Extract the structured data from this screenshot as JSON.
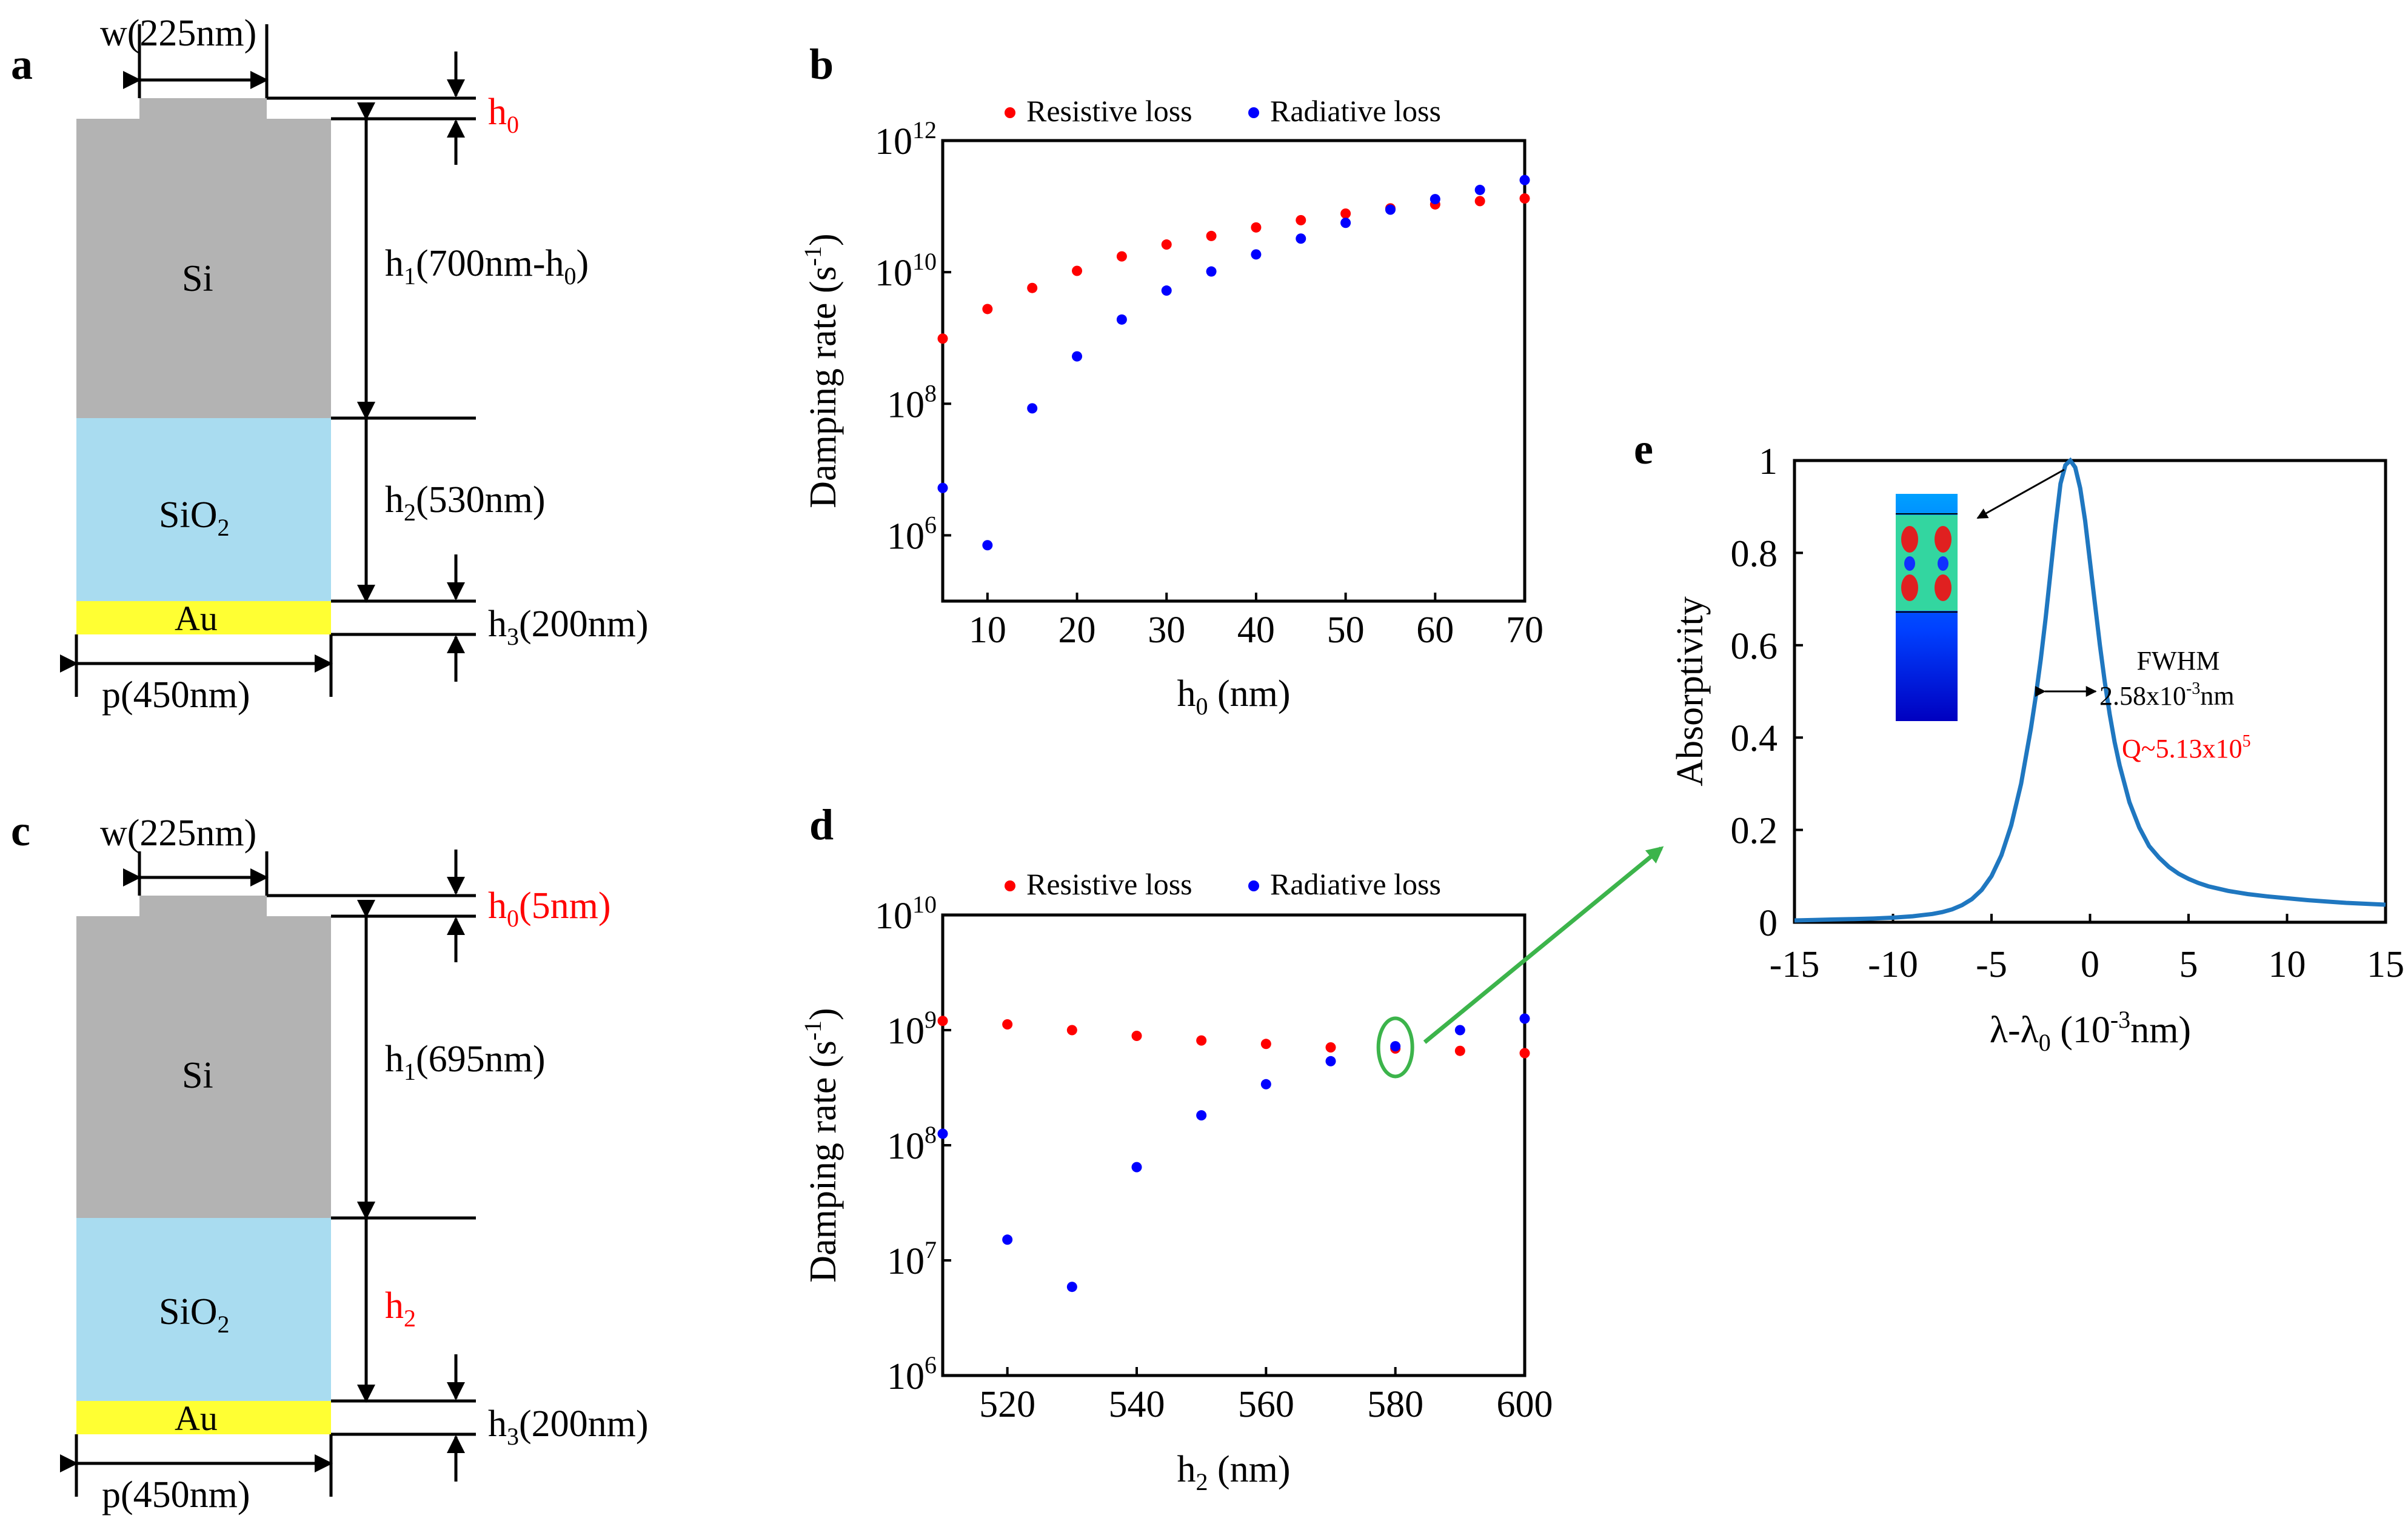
{
  "colors": {
    "si": "#b3b3b3",
    "sio2": "#a9dcf0",
    "au": "#ffff33",
    "resistive": "#ff0000",
    "radiative": "#0000ff",
    "curve": "#1f77c0",
    "arrow": "#3cb44b",
    "highlight": "#ff0000"
  },
  "panel_a": {
    "label": "a",
    "w_label": "w(225nm)",
    "h0_label": "h",
    "h0_sub": "0",
    "si_label": "Si",
    "h1_label": "h",
    "h1_sub": "1",
    "h1_text_a": "(700nm-h",
    "h1_text_sub": "0",
    "h1_text_b": ")",
    "sio2_label": "SiO",
    "sio2_sub": "2",
    "h2_label": "h",
    "h2_sub": "2",
    "h2_text": "(530nm)",
    "au_label": "Au",
    "h3_label": "h",
    "h3_sub": "3",
    "h3_text": "(200nm)",
    "p_label": "p(450nm)"
  },
  "panel_c": {
    "label": "c",
    "w_label": "w(225nm)",
    "h0_label": "h",
    "h0_sub": "0",
    "h0_text": "(5nm)",
    "si_label": "Si",
    "h1_label": "h",
    "h1_sub": "1",
    "h1_text": "(695nm)",
    "sio2_label": "SiO",
    "sio2_sub": "2",
    "h2_label": "h",
    "h2_sub": "2",
    "au_label": "Au",
    "h3_label": "h",
    "h3_sub": "3",
    "h3_text": "(200nm)",
    "p_label": "p(450nm)"
  },
  "chart_data": [
    {
      "id": "b",
      "type": "scatter",
      "panel_label": "b",
      "yscale": "log",
      "xlabel": "h",
      "xlabel_sub": "0",
      "xlabel_unit": " (nm)",
      "ylabel": "Damping rate (s",
      "ylabel_sup": "-1",
      "ylabel_end": ")",
      "xlim": [
        5,
        70
      ],
      "ylim_exp": [
        5,
        12
      ],
      "xticks": [
        10,
        20,
        30,
        40,
        50,
        60,
        70
      ],
      "ytick_exps": [
        6,
        8,
        10,
        12
      ],
      "series": [
        {
          "name": "Resistive loss",
          "color": "#ff0000",
          "x": [
            5,
            10,
            15,
            20,
            25,
            30,
            35,
            40,
            45,
            50,
            55,
            60,
            65,
            70
          ],
          "y_exp": [
            8.99,
            9.44,
            9.76,
            10.02,
            10.24,
            10.42,
            10.55,
            10.68,
            10.79,
            10.89,
            10.97,
            11.03,
            11.08,
            11.12
          ]
        },
        {
          "name": "Radiative loss",
          "color": "#0000ff",
          "x": [
            5,
            10,
            15,
            20,
            25,
            30,
            35,
            40,
            45,
            50,
            55,
            60,
            65,
            70
          ],
          "y_exp": [
            6.72,
            5.85,
            7.93,
            8.72,
            9.28,
            9.72,
            10.01,
            10.27,
            10.51,
            10.75,
            10.95,
            11.11,
            11.25,
            11.4
          ]
        }
      ]
    },
    {
      "id": "d",
      "type": "scatter",
      "panel_label": "d",
      "yscale": "log",
      "xlabel": "h",
      "xlabel_sub": "2",
      "xlabel_unit": " (nm)",
      "ylabel": "Damping rate (s",
      "ylabel_sup": "-1",
      "ylabel_end": ")",
      "xlim": [
        510,
        600
      ],
      "ylim_exp": [
        6,
        10
      ],
      "xticks": [
        520,
        540,
        560,
        580,
        600
      ],
      "ytick_exps": [
        6,
        7,
        8,
        9,
        10
      ],
      "series": [
        {
          "name": "Resistive loss",
          "color": "#ff0000",
          "x": [
            510,
            520,
            530,
            540,
            550,
            560,
            570,
            580,
            590,
            600
          ],
          "y_exp": [
            9.08,
            9.05,
            9.0,
            8.95,
            8.91,
            8.88,
            8.85,
            8.84,
            8.82,
            8.8
          ]
        },
        {
          "name": "Radiative loss",
          "color": "#0000ff",
          "x": [
            510,
            520,
            530,
            540,
            550,
            560,
            570,
            580,
            590,
            600
          ],
          "y_exp": [
            8.1,
            7.18,
            6.77,
            7.81,
            8.26,
            8.53,
            8.73,
            8.86,
            9.0,
            9.1
          ]
        }
      ],
      "highlight_x": 580
    },
    {
      "id": "e",
      "type": "line",
      "panel_label": "e",
      "xlabel": "λ-λ",
      "xlabel_sub": "0",
      "xlabel_mid": " (10",
      "xlabel_sup": "-3",
      "xlabel_end": "nm)",
      "ylabel": "Absorptivity",
      "xlim": [
        -15,
        15
      ],
      "ylim": [
        0,
        1
      ],
      "xticks": [
        -15,
        -10,
        -5,
        0,
        5,
        10,
        15
      ],
      "yticks": [
        0,
        0.2,
        0.4,
        0.6,
        0.8,
        1
      ],
      "peak_x": -1.0,
      "fwhm": 2.58,
      "fwhm_label": "FWHM",
      "fwhm_value": "2.58x10",
      "fwhm_value_sup": "-3",
      "fwhm_value_unit": "nm",
      "q_label": "Q~5.13x10",
      "q_sup": "5",
      "series": [
        {
          "name": "Absorptivity",
          "x": [
            -15,
            -14,
            -13,
            -12,
            -11,
            -10,
            -9,
            -8,
            -7.5,
            -7,
            -6.5,
            -6,
            -5.5,
            -5,
            -4.5,
            -4,
            -3.5,
            -3,
            -2.75,
            -2.5,
            -2.25,
            -2,
            -1.75,
            -1.5,
            -1.25,
            -1,
            -0.75,
            -0.5,
            -0.25,
            0,
            0.25,
            0.5,
            0.75,
            1,
            1.25,
            1.5,
            2,
            2.5,
            3,
            3.5,
            4,
            4.5,
            5,
            5.5,
            6,
            7,
            8,
            9,
            10,
            11,
            12,
            13,
            14,
            15
          ],
          "y": [
            0.004,
            0.005,
            0.006,
            0.007,
            0.008,
            0.01,
            0.013,
            0.018,
            0.022,
            0.028,
            0.037,
            0.05,
            0.07,
            0.1,
            0.145,
            0.21,
            0.3,
            0.42,
            0.49,
            0.57,
            0.66,
            0.76,
            0.86,
            0.95,
            0.99,
            1.0,
            0.985,
            0.94,
            0.87,
            0.78,
            0.69,
            0.6,
            0.52,
            0.45,
            0.39,
            0.34,
            0.26,
            0.205,
            0.165,
            0.14,
            0.12,
            0.105,
            0.094,
            0.085,
            0.078,
            0.068,
            0.061,
            0.056,
            0.052,
            0.048,
            0.045,
            0.042,
            0.04,
            0.038
          ]
        }
      ]
    }
  ]
}
